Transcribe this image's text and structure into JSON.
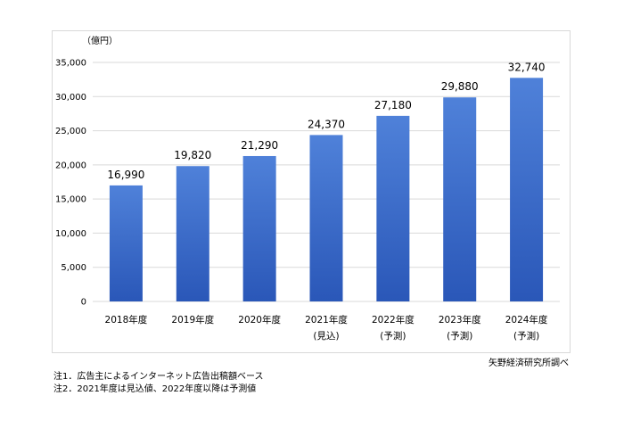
{
  "chart_data": {
    "type": "bar",
    "unit": "（億円）",
    "categories": [
      "2018年度",
      "2019年度",
      "2020年度",
      "2021年度",
      "2022年度",
      "2023年度",
      "2024年度"
    ],
    "category_notes": [
      "",
      "",
      "",
      "(見込)",
      "(予測)",
      "(予測)",
      "(予測)"
    ],
    "values": [
      16990,
      19820,
      21290,
      24370,
      27180,
      29880,
      32740
    ],
    "value_labels": [
      "16,990",
      "19,820",
      "21,290",
      "24,370",
      "27,180",
      "29,880",
      "32,740"
    ],
    "ylim": [
      0,
      35000
    ],
    "yticks": [
      0,
      5000,
      10000,
      15000,
      20000,
      25000,
      30000,
      35000
    ],
    "ytick_labels": [
      "0",
      "5,000",
      "10,000",
      "15,000",
      "20,000",
      "25,000",
      "30,000",
      "35,000"
    ],
    "grid": true,
    "colors": {
      "bar_top": "#4f81d9",
      "bar_bottom": "#2a57b8",
      "grid": "#d9d9d9"
    }
  },
  "source": "矢野経済研究所調べ",
  "footnotes": [
    "注1．広告主によるインターネット広告出稿額ベース",
    "注2．2021年度は見込値、2022年度以降は予測値"
  ]
}
